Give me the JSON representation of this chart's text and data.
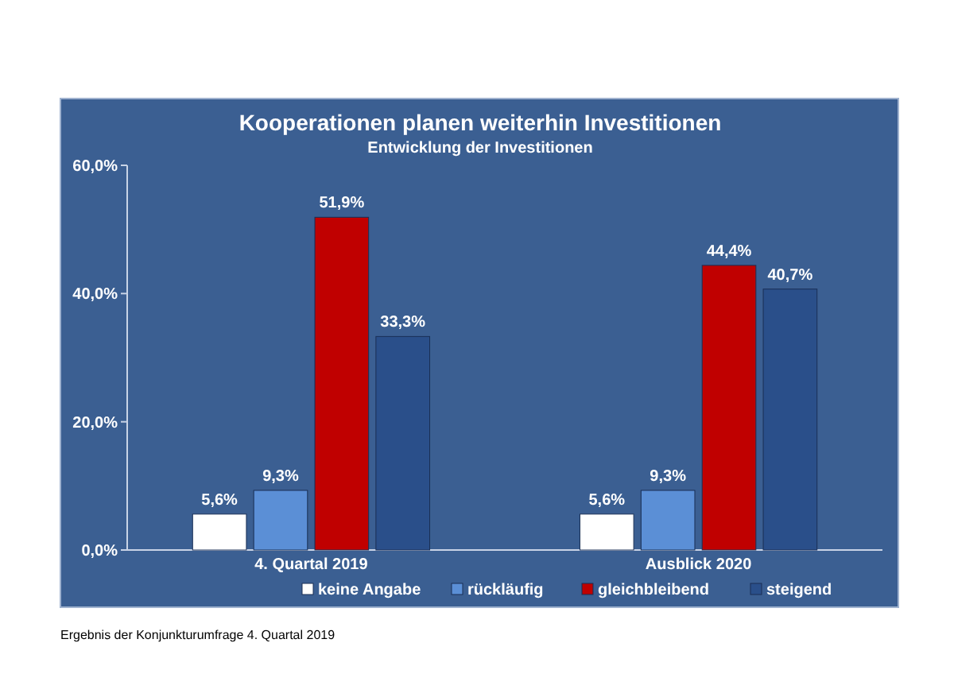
{
  "chart_data": {
    "type": "bar",
    "title": "Kooperationen planen weiterhin Investitionen",
    "subtitle": "Entwicklung der Investitionen",
    "categories": [
      "4. Quartal 2019",
      "Ausblick 2020"
    ],
    "series": [
      {
        "name": "keine Angabe",
        "color": "#ffffff",
        "values": [
          5.6,
          5.6
        ],
        "value_labels": [
          "5,6%",
          "5,6%"
        ]
      },
      {
        "name": "rückläufig",
        "color": "#5b8fd6",
        "values": [
          9.3,
          9.3
        ],
        "value_labels": [
          "9,3%",
          "9,3%"
        ]
      },
      {
        "name": "gleichbleibend",
        "color": "#c00000",
        "values": [
          51.9,
          44.4
        ],
        "value_labels": [
          "51,9%",
          "44,4%"
        ]
      },
      {
        "name": "steigend",
        "color": "#2a4f8a",
        "values": [
          33.3,
          40.7
        ],
        "value_labels": [
          "33,3%",
          "40,7%"
        ]
      }
    ],
    "ylim": [
      0,
      60
    ],
    "yticks": [
      {
        "value": 0,
        "label": "0,0%"
      },
      {
        "value": 20,
        "label": "20,0%"
      },
      {
        "value": 40,
        "label": "40,0%"
      },
      {
        "value": 60,
        "label": "60,0%"
      }
    ],
    "legend": "bottom",
    "grid": false,
    "annotations": [
      "Ergebnis der Konjunkturumfrage 4. Quartal 2019"
    ]
  }
}
